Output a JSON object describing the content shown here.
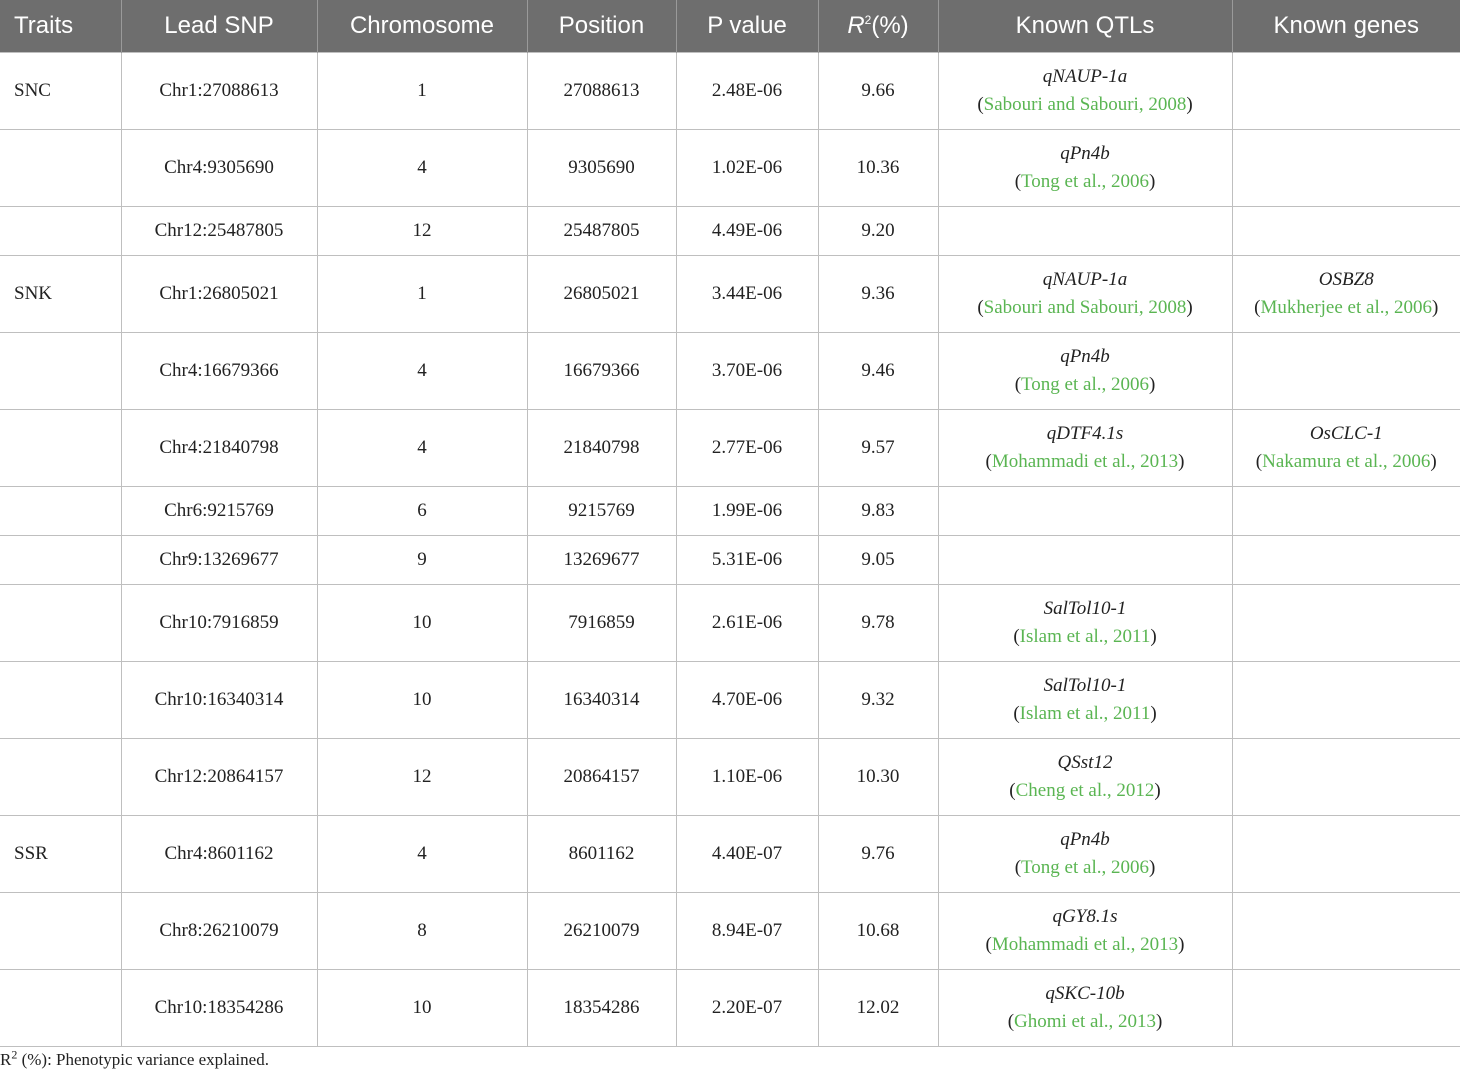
{
  "headers": {
    "traits": "Traits",
    "lead_snp": "Lead SNP",
    "chromosome": "Chromosome",
    "position": "Position",
    "p_value": "P value",
    "r2_symbol": "R",
    "r2_sup": "2",
    "r2_unit": "(%)",
    "known_qtls": "Known QTLs",
    "known_genes": "Known genes"
  },
  "rows": [
    {
      "trait": "SNC",
      "snp": "Chr1:27088613",
      "chrom": "1",
      "pos": "27088613",
      "p": "2.48E-06",
      "r2": "9.66",
      "qtl": "qNAUP-1a",
      "qtl_ref": "Sabouri and Sabouri, 2008",
      "gene": "",
      "gene_ref": ""
    },
    {
      "trait": "",
      "snp": "Chr4:9305690",
      "chrom": "4",
      "pos": "9305690",
      "p": "1.02E-06",
      "r2": "10.36",
      "qtl": "qPn4b",
      "qtl_ref": "Tong et al., 2006",
      "gene": "",
      "gene_ref": ""
    },
    {
      "trait": "",
      "snp": "Chr12:25487805",
      "chrom": "12",
      "pos": "25487805",
      "p": "4.49E-06",
      "r2": "9.20",
      "qtl": "",
      "qtl_ref": "",
      "gene": "",
      "gene_ref": ""
    },
    {
      "trait": "SNK",
      "snp": "Chr1:26805021",
      "chrom": "1",
      "pos": "26805021",
      "p": "3.44E-06",
      "r2": "9.36",
      "qtl": "qNAUP-1a",
      "qtl_ref": "Sabouri and Sabouri, 2008",
      "gene": "OSBZ8",
      "gene_ref": "Mukherjee et al., 2006"
    },
    {
      "trait": "",
      "snp": "Chr4:16679366",
      "chrom": "4",
      "pos": "16679366",
      "p": "3.70E-06",
      "r2": "9.46",
      "qtl": "qPn4b",
      "qtl_ref": "Tong et al., 2006",
      "gene": "",
      "gene_ref": ""
    },
    {
      "trait": "",
      "snp": "Chr4:21840798",
      "chrom": "4",
      "pos": "21840798",
      "p": "2.77E-06",
      "r2": "9.57",
      "qtl": "qDTF4.1s",
      "qtl_ref": "Mohammadi et al., 2013",
      "gene": "OsCLC-1",
      "gene_ref": "Nakamura et al., 2006"
    },
    {
      "trait": "",
      "snp": "Chr6:9215769",
      "chrom": "6",
      "pos": "9215769",
      "p": "1.99E-06",
      "r2": "9.83",
      "qtl": "",
      "qtl_ref": "",
      "gene": "",
      "gene_ref": ""
    },
    {
      "trait": "",
      "snp": "Chr9:13269677",
      "chrom": "9",
      "pos": "13269677",
      "p": "5.31E-06",
      "r2": "9.05",
      "qtl": "",
      "qtl_ref": "",
      "gene": "",
      "gene_ref": ""
    },
    {
      "trait": "",
      "snp": "Chr10:7916859",
      "chrom": "10",
      "pos": "7916859",
      "p": "2.61E-06",
      "r2": "9.78",
      "qtl": "SalTol10-1",
      "qtl_ref": "Islam et al., 2011",
      "gene": "",
      "gene_ref": ""
    },
    {
      "trait": "",
      "snp": "Chr10:16340314",
      "chrom": "10",
      "pos": "16340314",
      "p": "4.70E-06",
      "r2": "9.32",
      "qtl": "SalTol10-1",
      "qtl_ref": "Islam et al., 2011",
      "gene": "",
      "gene_ref": ""
    },
    {
      "trait": "",
      "snp": "Chr12:20864157",
      "chrom": "12",
      "pos": "20864157",
      "p": "1.10E-06",
      "r2": "10.30",
      "qtl": "QSst12",
      "qtl_ref": "Cheng et al., 2012",
      "gene": "",
      "gene_ref": ""
    },
    {
      "trait": "SSR",
      "snp": "Chr4:8601162",
      "chrom": "4",
      "pos": "8601162",
      "p": "4.40E-07",
      "r2": "9.76",
      "qtl": "qPn4b",
      "qtl_ref": "Tong et al., 2006",
      "gene": "",
      "gene_ref": ""
    },
    {
      "trait": "",
      "snp": "Chr8:26210079",
      "chrom": "8",
      "pos": "26210079",
      "p": "8.94E-07",
      "r2": "10.68",
      "qtl": "qGY8.1s",
      "qtl_ref": "Mohammadi et al., 2013",
      "gene": "",
      "gene_ref": ""
    },
    {
      "trait": "",
      "snp": "Chr10:18354286",
      "chrom": "10",
      "pos": "18354286",
      "p": "2.20E-07",
      "r2": "12.02",
      "qtl": "qSKC-10b",
      "qtl_ref": "Ghomi et al., 2013",
      "gene": "",
      "gene_ref": ""
    }
  ],
  "footnote": {
    "symbol": "R",
    "sup": "2",
    "text": " (%): Phenotypic variance explained."
  },
  "colors": {
    "header_bg": "#6e6e6e",
    "reference_link": "#5ab552",
    "grid_line": "#bfbfbf"
  }
}
